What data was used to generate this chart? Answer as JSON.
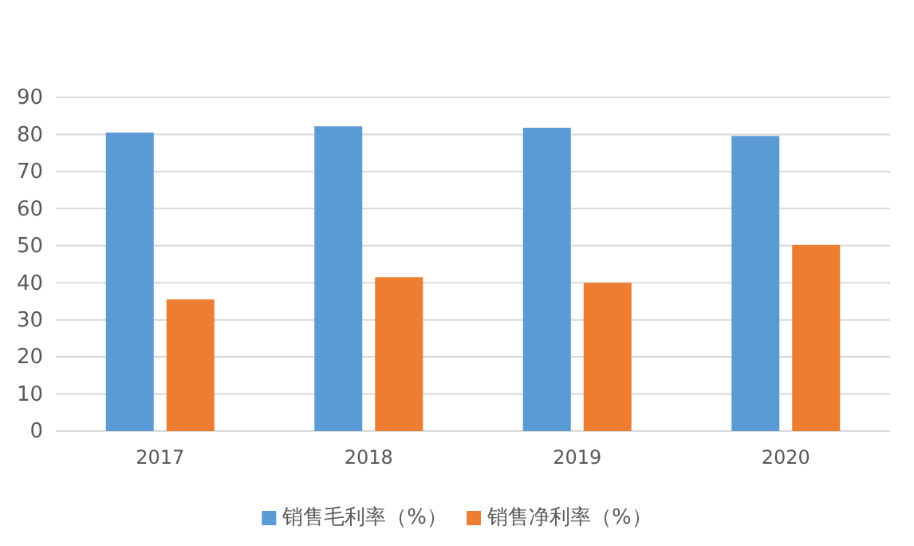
{
  "chart_data": {
    "type": "bar",
    "categories": [
      "2017",
      "2018",
      "2019",
      "2020"
    ],
    "series": [
      {
        "name": "销售毛利率（%）",
        "color": "#5b9bd5",
        "values": [
          80.5,
          82.2,
          81.8,
          79.6
        ]
      },
      {
        "name": "销售净利率（%）",
        "color": "#ed7d31",
        "values": [
          35.5,
          41.5,
          40,
          50.2
        ]
      }
    ],
    "ylim": [
      0,
      90
    ],
    "yticks": [
      0,
      10,
      20,
      30,
      40,
      50,
      60,
      70,
      80,
      90
    ],
    "grid": "y",
    "legend": "bottom"
  }
}
